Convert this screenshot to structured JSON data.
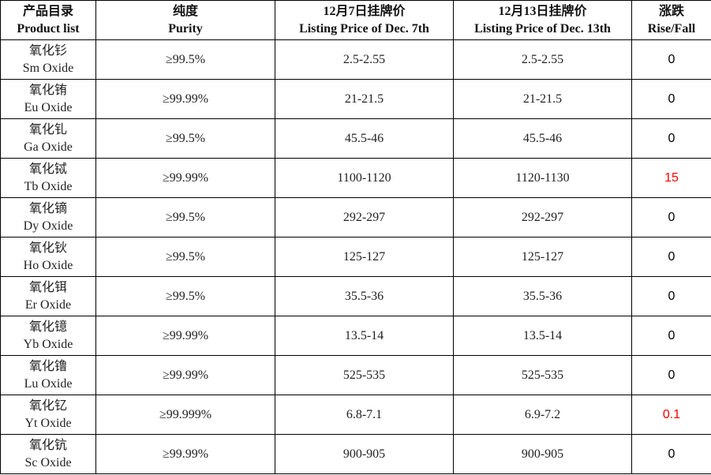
{
  "table": {
    "headers": [
      {
        "zh": "产品目录",
        "en": "Product list"
      },
      {
        "zh": "纯度",
        "en": "Purity"
      },
      {
        "zh": "12月7日挂牌价",
        "en": "Listing Price of Dec. 7th"
      },
      {
        "zh": "12月13日挂牌价",
        "en": "Listing Price of Dec. 13th"
      },
      {
        "zh": "涨跌",
        "en": "Rise/Fall"
      }
    ],
    "rows": [
      {
        "name_zh": "氧化钐",
        "name_en": "Sm Oxide",
        "purity": "≥99.5%",
        "price_dec7": "2.5-2.55",
        "price_dec13": "2.5-2.55",
        "change": "0",
        "change_color": "#000000"
      },
      {
        "name_zh": "氧化铕",
        "name_en": "Eu Oxide",
        "purity": "≥99.99%",
        "price_dec7": "21-21.5",
        "price_dec13": "21-21.5",
        "change": "0",
        "change_color": "#000000"
      },
      {
        "name_zh": "氧化钆",
        "name_en": "Ga Oxide",
        "purity": "≥99.5%",
        "price_dec7": "45.5-46",
        "price_dec13": "45.5-46",
        "change": "0",
        "change_color": "#000000"
      },
      {
        "name_zh": "氧化铽",
        "name_en": "Tb Oxide",
        "purity": "≥99.99%",
        "price_dec7": "1100-1120",
        "price_dec13": "1120-1130",
        "change": "15",
        "change_color": "#ff0000"
      },
      {
        "name_zh": "氧化镝",
        "name_en": "Dy Oxide",
        "purity": "≥99.5%",
        "price_dec7": "292-297",
        "price_dec13": "292-297",
        "change": "0",
        "change_color": "#000000"
      },
      {
        "name_zh": "氧化钬",
        "name_en": "Ho Oxide",
        "purity": "≥99.5%",
        "price_dec7": "125-127",
        "price_dec13": "125-127",
        "change": "0",
        "change_color": "#000000"
      },
      {
        "name_zh": "氧化铒",
        "name_en": "Er Oxide",
        "purity": "≥99.5%",
        "price_dec7": "35.5-36",
        "price_dec13": "35.5-36",
        "change": "0",
        "change_color": "#000000"
      },
      {
        "name_zh": "氧化镱",
        "name_en": "Yb Oxide",
        "purity": "≥99.99%",
        "price_dec7": "13.5-14",
        "price_dec13": "13.5-14",
        "change": "0",
        "change_color": "#000000"
      },
      {
        "name_zh": "氧化镥",
        "name_en": "Lu Oxide",
        "purity": "≥99.99%",
        "price_dec7": "525-535",
        "price_dec13": "525-535",
        "change": "0",
        "change_color": "#000000"
      },
      {
        "name_zh": "氧化钇",
        "name_en": "Yt Oxide",
        "purity": "≥99.999%",
        "price_dec7": "6.8-7.1",
        "price_dec13": "6.9-7.2",
        "change": "0.1",
        "change_color": "#ff0000"
      },
      {
        "name_zh": "氧化钪",
        "name_en": "Sc Oxide",
        "purity": "≥99.99%",
        "price_dec7": "900-905",
        "price_dec13": "900-905",
        "change": "0",
        "change_color": "#000000"
      }
    ]
  }
}
